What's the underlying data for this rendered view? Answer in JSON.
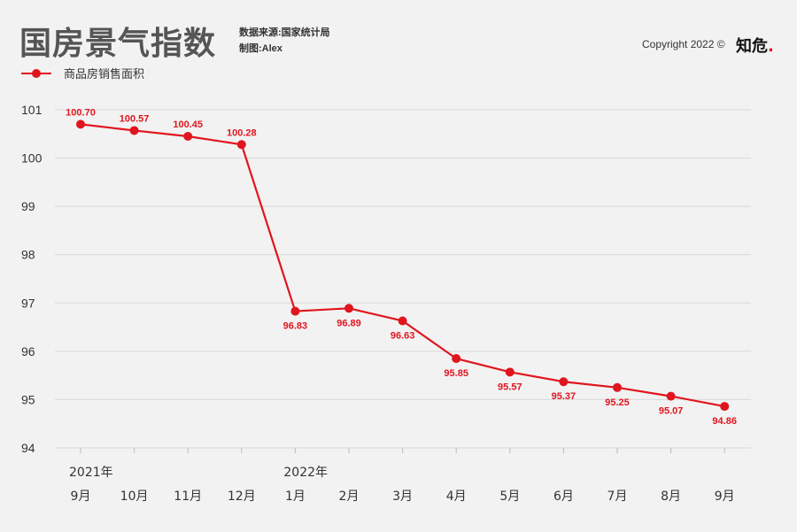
{
  "header": {
    "title": "国房景气指数",
    "source": "数据来源:国家统计局",
    "author": "制图:Alex",
    "copyright": "Copyright 2022 ©",
    "logo_text": "知危",
    "logo_dot": "."
  },
  "colors": {
    "series": "#e1151e",
    "grid": "#d8d8d8",
    "background": "#f2f2f2"
  },
  "chart_data": {
    "type": "line",
    "title": "国房景气指数",
    "xlabel": "",
    "ylabel": "",
    "ylim": [
      94,
      101
    ],
    "yticks": [
      101,
      100,
      99,
      98,
      97,
      96,
      95,
      94
    ],
    "grid": true,
    "legend_position": "top-left",
    "year_labels": [
      {
        "label": "2021年",
        "index": 0
      },
      {
        "label": "2022年",
        "index": 4
      }
    ],
    "categories": [
      "9月",
      "10月",
      "11月",
      "12月",
      "1月",
      "2月",
      "3月",
      "4月",
      "5月",
      "6月",
      "7月",
      "8月",
      "9月"
    ],
    "series": [
      {
        "name": "商品房销售面积",
        "values": [
          100.7,
          100.57,
          100.45,
          100.28,
          96.83,
          96.89,
          96.63,
          95.85,
          95.57,
          95.37,
          95.25,
          95.07,
          94.86
        ],
        "labels": [
          "100.70",
          "100.57",
          "100.45",
          "100.28",
          "96.83",
          "96.89",
          "96.63",
          "95.85",
          "95.57",
          "95.37",
          "95.25",
          "95.07",
          "94.86"
        ]
      }
    ]
  }
}
